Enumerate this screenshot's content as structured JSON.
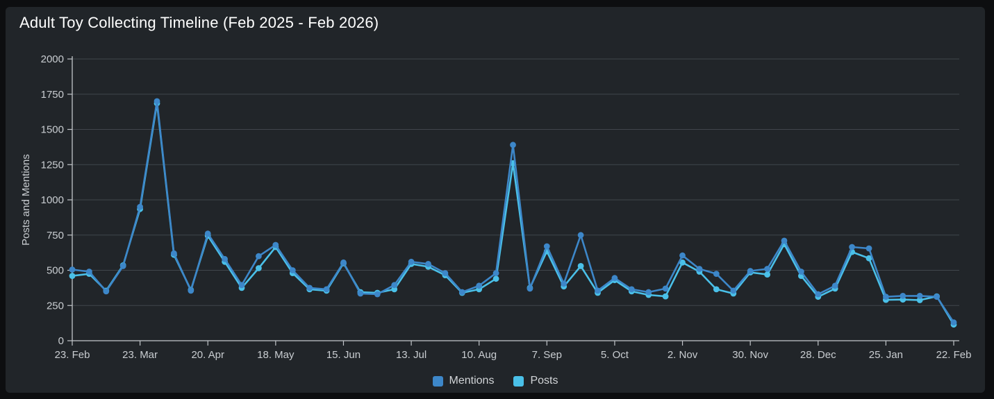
{
  "chart_data": {
    "type": "line",
    "title": "Adult Toy Collecting Timeline (Feb 2025 - Feb 2026)",
    "xlabel": "",
    "ylabel": "Posts and Mentions",
    "ylim": [
      0,
      2000
    ],
    "y_tick_labels": [
      "0",
      "250",
      "500",
      "750",
      "1000",
      "1250",
      "1500",
      "1750",
      "2000"
    ],
    "x_tick_labels": [
      "23. Feb",
      "23. Mar",
      "20. Apr",
      "18. May",
      "15. Jun",
      "13. Jul",
      "10. Aug",
      "7. Sep",
      "5. Oct",
      "2. Nov",
      "30. Nov",
      "28. Dec",
      "25. Jan",
      "22. Feb"
    ],
    "x_tick_every": 4,
    "points_per_series": 53,
    "grid": "horizontal",
    "legend_position": "bottom",
    "series": [
      {
        "name": "Mentions",
        "color": "#3d87c9",
        "values": [
          505,
          490,
          350,
          530,
          950,
          1700,
          620,
          355,
          760,
          580,
          395,
          600,
          680,
          500,
          375,
          365,
          555,
          335,
          330,
          395,
          560,
          545,
          480,
          345,
          390,
          480,
          1390,
          370,
          670,
          405,
          750,
          355,
          445,
          365,
          345,
          370,
          605,
          510,
          475,
          355,
          495,
          510,
          710,
          490,
          330,
          390,
          665,
          655,
          312,
          318,
          318,
          312,
          130
        ]
      },
      {
        "name": "Posts",
        "color": "#4ac0e8",
        "values": [
          460,
          475,
          355,
          535,
          935,
          1685,
          610,
          360,
          745,
          560,
          375,
          515,
          665,
          480,
          365,
          355,
          550,
          345,
          340,
          365,
          545,
          525,
          465,
          340,
          365,
          440,
          1260,
          375,
          635,
          385,
          530,
          340,
          430,
          350,
          325,
          315,
          555,
          490,
          365,
          335,
          485,
          470,
          685,
          460,
          312,
          370,
          630,
          585,
          290,
          292,
          288,
          315,
          115
        ]
      }
    ]
  }
}
